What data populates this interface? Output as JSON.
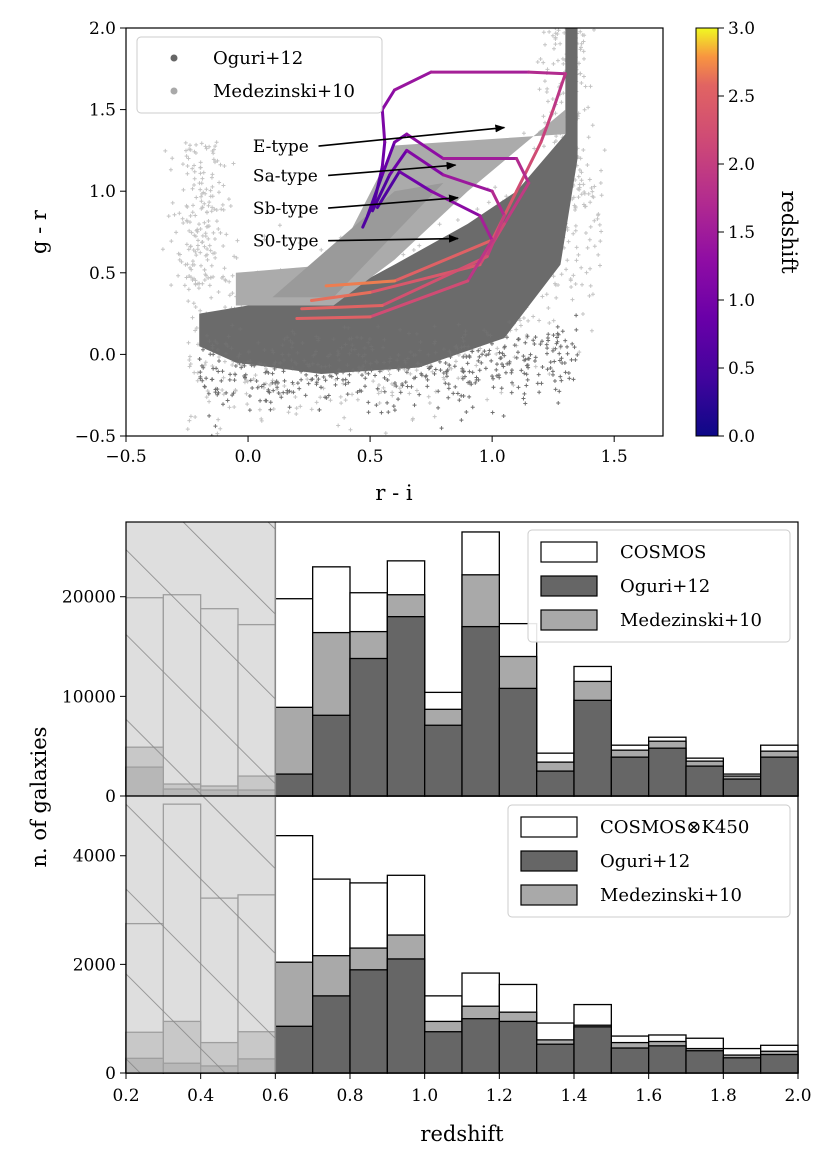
{
  "chart_data": [
    {
      "type": "scatter",
      "xlabel": "r - i",
      "ylabel": "g - r",
      "xlim": [
        -0.5,
        1.7
      ],
      "ylim": [
        -0.5,
        2.0
      ],
      "xticks": [
        "−0.5",
        "0.0",
        "0.5",
        "1.0",
        "1.5"
      ],
      "xtick_values": [
        -0.5,
        0.0,
        0.5,
        1.0,
        1.5
      ],
      "yticks": [
        "−0.5",
        "0.0",
        "0.5",
        "1.0",
        "1.5",
        "2.0"
      ],
      "ytick_values": [
        -0.5,
        0.0,
        0.5,
        1.0,
        1.5,
        2.0
      ],
      "legend": {
        "position": "top-left",
        "entries": [
          {
            "name": "Oguri+12",
            "color": "#666666"
          },
          {
            "name": "Medezinski+10",
            "color": "#a9a9a9"
          }
        ]
      },
      "colorbar": {
        "label": "redshift",
        "cmap": "plasma",
        "range": [
          0.0,
          3.0
        ],
        "ticks": [
          "0.0",
          "0.5",
          "1.0",
          "1.5",
          "2.0",
          "2.5",
          "3.0"
        ],
        "tick_values": [
          0.0,
          0.5,
          1.0,
          1.5,
          2.0,
          2.5,
          3.0
        ]
      },
      "tracks": [
        {
          "label": "E-type",
          "points": [
            [
              0.47,
              0.78
            ],
            [
              0.52,
              0.95
            ],
            [
              0.55,
              1.15
            ],
            [
              0.56,
              1.3
            ],
            [
              0.55,
              1.5
            ],
            [
              0.6,
              1.62
            ],
            [
              0.75,
              1.73
            ],
            [
              1.15,
              1.73
            ],
            [
              1.3,
              1.72
            ],
            [
              1.25,
              1.5
            ],
            [
              1.2,
              1.3
            ],
            [
              1.1,
              1.0
            ],
            [
              1.0,
              0.7
            ],
            [
              0.6,
              0.45
            ],
            [
              0.32,
              0.42
            ]
          ],
          "z0": 0.0,
          "z1": 3.0
        },
        {
          "label": "Sa-type",
          "points": [
            [
              0.49,
              0.85
            ],
            [
              0.55,
              1.1
            ],
            [
              0.6,
              1.3
            ],
            [
              0.65,
              1.35
            ],
            [
              0.8,
              1.2
            ],
            [
              1.1,
              1.2
            ],
            [
              1.15,
              1.05
            ],
            [
              1.05,
              0.8
            ],
            [
              0.95,
              0.55
            ],
            [
              0.5,
              0.38
            ],
            [
              0.26,
              0.33
            ]
          ],
          "z0": 0.0,
          "z1": 3.0
        },
        {
          "label": "Sb-type",
          "points": [
            [
              0.51,
              0.88
            ],
            [
              0.58,
              1.1
            ],
            [
              0.65,
              1.25
            ],
            [
              0.8,
              1.1
            ],
            [
              1.0,
              1.0
            ],
            [
              1.05,
              0.85
            ],
            [
              0.98,
              0.6
            ],
            [
              0.55,
              0.3
            ],
            [
              0.22,
              0.28
            ]
          ],
          "z0": 0.0,
          "z1": 3.0
        },
        {
          "label": "S0-type",
          "points": [
            [
              0.53,
              0.9
            ],
            [
              0.62,
              1.12
            ],
            [
              0.75,
              1.0
            ],
            [
              0.95,
              0.85
            ],
            [
              1.0,
              0.7
            ],
            [
              0.9,
              0.45
            ],
            [
              0.5,
              0.23
            ],
            [
              0.2,
              0.22
            ]
          ],
          "z0": 0.0,
          "z1": 3.0
        }
      ],
      "annotations": [
        {
          "text": "E-type",
          "at": [
            0.02,
            1.24
          ],
          "arrow_to": [
            1.05,
            1.39
          ]
        },
        {
          "text": "Sa-type",
          "at": [
            0.02,
            1.06
          ],
          "arrow_to": [
            0.85,
            1.16
          ]
        },
        {
          "text": "Sb-type",
          "at": [
            0.02,
            0.86
          ],
          "arrow_to": [
            0.86,
            0.96
          ]
        },
        {
          "text": "S0-type",
          "at": [
            0.02,
            0.66
          ],
          "arrow_to": [
            0.86,
            0.71
          ]
        }
      ]
    },
    {
      "type": "bar",
      "ylabel": "n. of galaxies",
      "xlim": [
        0.2,
        2.0
      ],
      "ylim": [
        0,
        27500
      ],
      "yticks": [
        "0",
        "10000",
        "20000"
      ],
      "ytick_values": [
        0,
        10000,
        20000
      ],
      "shaded_region": [
        0.2,
        0.6
      ],
      "bin_edges": [
        0.2,
        0.3,
        0.4,
        0.5,
        0.6,
        0.7,
        0.8,
        0.9,
        1.0,
        1.1,
        1.2,
        1.3,
        1.4,
        1.5,
        1.6,
        1.7,
        1.8,
        1.9,
        2.0
      ],
      "legend": {
        "position": "top-right"
      },
      "series": [
        {
          "name": "COSMOS",
          "color": "#ffffff",
          "values": [
            19900,
            20200,
            18800,
            17200,
            19800,
            23000,
            20400,
            23600,
            10400,
            26500,
            17300,
            4300,
            13000,
            5100,
            5900,
            3800,
            2200,
            5100
          ]
        },
        {
          "name": "Oguri+12",
          "color": "#666666",
          "values": [
            2900,
            700,
            600,
            600,
            2200,
            8100,
            13800,
            18000,
            7100,
            17000,
            10800,
            2500,
            9600,
            3900,
            4800,
            3000,
            1700,
            3900
          ]
        },
        {
          "name": "Medezinski+10",
          "color": "#a9a9a9",
          "values": [
            4900,
            1200,
            1000,
            2000,
            8900,
            16400,
            16500,
            20200,
            8700,
            22200,
            14000,
            3400,
            11500,
            4600,
            5500,
            3500,
            2000,
            4500
          ]
        }
      ]
    },
    {
      "type": "bar",
      "xlabel": "redshift",
      "ylabel": "n. of galaxies",
      "xlim": [
        0.2,
        2.0
      ],
      "ylim": [
        0,
        5100
      ],
      "xticks": [
        "0.2",
        "0.4",
        "0.6",
        "0.8",
        "1.0",
        "1.2",
        "1.4",
        "1.6",
        "1.8",
        "2.0"
      ],
      "xtick_values": [
        0.2,
        0.4,
        0.6,
        0.8,
        1.0,
        1.2,
        1.4,
        1.6,
        1.8,
        2.0
      ],
      "yticks": [
        "0",
        "2000",
        "4000"
      ],
      "ytick_values": [
        0,
        2000,
        4000
      ],
      "shaded_region": [
        0.2,
        0.6
      ],
      "bin_edges": [
        0.2,
        0.3,
        0.4,
        0.5,
        0.6,
        0.7,
        0.8,
        0.9,
        1.0,
        1.1,
        1.2,
        1.3,
        1.4,
        1.5,
        1.6,
        1.7,
        1.8,
        1.9,
        2.0
      ],
      "legend": {
        "position": "top-right"
      },
      "series": [
        {
          "name": "COSMOS⊗K450",
          "color": "#ffffff",
          "values": [
            2750,
            4950,
            3220,
            3280,
            4370,
            3570,
            3500,
            3640,
            1420,
            1840,
            1630,
            920,
            1260,
            680,
            700,
            640,
            450,
            510
          ]
        },
        {
          "name": "Oguri+12",
          "color": "#666666",
          "values": [
            270,
            180,
            130,
            260,
            860,
            1420,
            1900,
            2100,
            760,
            1000,
            950,
            530,
            850,
            460,
            500,
            410,
            280,
            340
          ]
        },
        {
          "name": "Medezinski+10",
          "color": "#a9a9a9",
          "values": [
            750,
            950,
            560,
            760,
            2040,
            2160,
            2300,
            2540,
            950,
            1230,
            1120,
            610,
            880,
            560,
            580,
            450,
            330,
            400
          ]
        }
      ]
    }
  ]
}
